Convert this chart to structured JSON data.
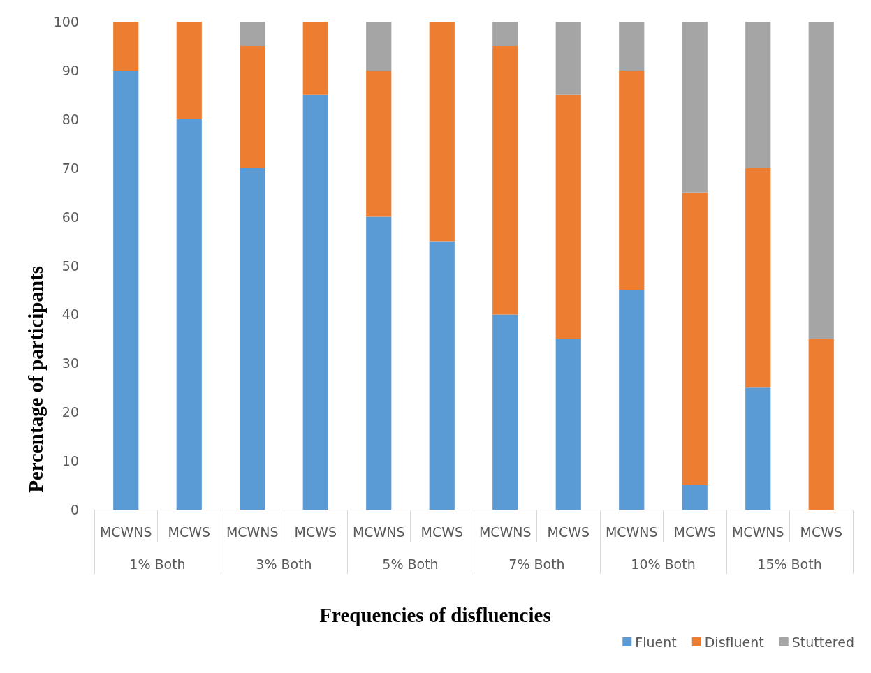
{
  "chart_data": {
    "type": "bar",
    "stacked": true,
    "xlabel": "Frequencies of disfluencies",
    "ylabel": "Percentage of participants",
    "categories": [
      "MCWNS",
      "MCWS",
      "MCWNS",
      "MCWS",
      "MCWNS",
      "MCWS",
      "MCWNS",
      "MCWS",
      "MCWNS",
      "MCWS",
      "MCWNS",
      "MCWS"
    ],
    "annotations": [
      "1% Both",
      "3% Both",
      "5% Both",
      "7% Both",
      "10% Both",
      "15% Both"
    ],
    "series": [
      {
        "name": "Fluent",
        "color": "#5b9bd5",
        "values": [
          90,
          80,
          70,
          85,
          60,
          55,
          40,
          35,
          45,
          5,
          25,
          0
        ]
      },
      {
        "name": "Disfluent",
        "color": "#ed7d31",
        "values": [
          10,
          20,
          25,
          15,
          30,
          45,
          55,
          50,
          45,
          60,
          45,
          35
        ]
      },
      {
        "name": "Stuttered",
        "color": "#a5a5a5",
        "values": [
          0,
          0,
          5,
          0,
          10,
          0,
          5,
          15,
          10,
          35,
          30,
          65
        ]
      }
    ],
    "ylim": [
      0,
      100
    ],
    "yticks": [
      0,
      10,
      20,
      30,
      40,
      50,
      60,
      70,
      80,
      90,
      100
    ],
    "grid": false,
    "legend": "bottom right"
  }
}
